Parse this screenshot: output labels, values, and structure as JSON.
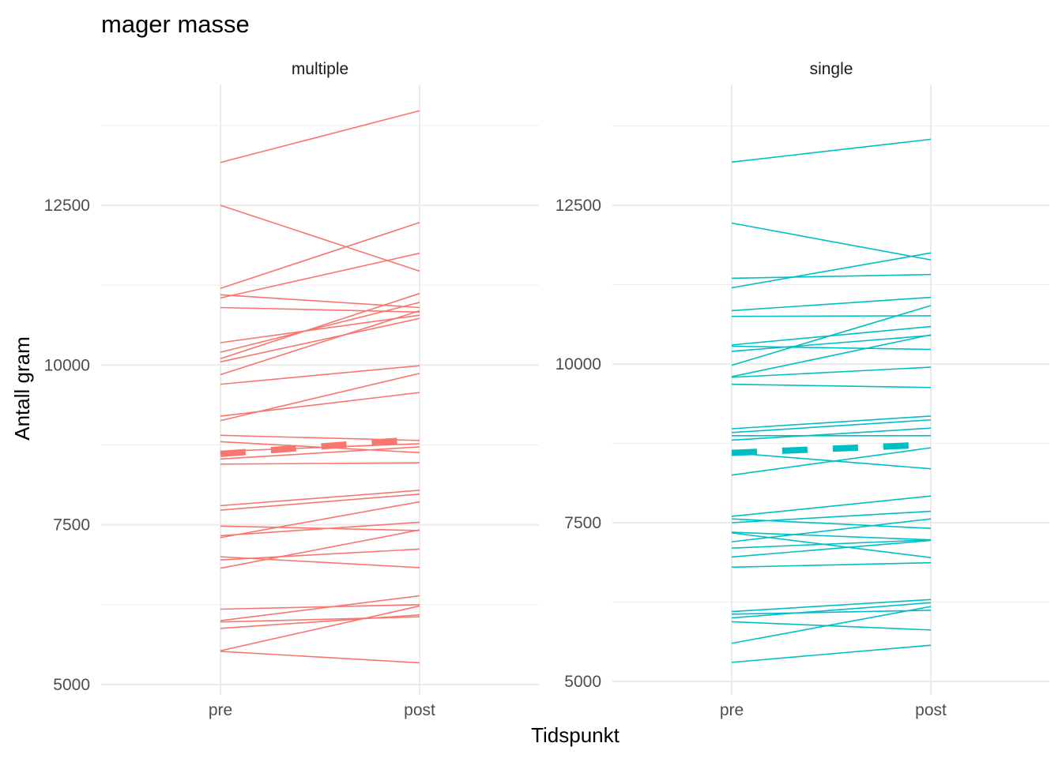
{
  "chart_data": {
    "type": "line",
    "title": "mager masse",
    "xlabel": "Tidspunkt",
    "ylabel": "Antall gram",
    "x": [
      "pre",
      "post"
    ],
    "grid": true,
    "panels": [
      {
        "label": "multiple",
        "color": "#F8766D",
        "ylim": [
          5000,
          14250
        ],
        "yticks": [
          5000,
          7500,
          10000,
          12500
        ],
        "mean": [
          8610,
          8840
        ],
        "pairs": [
          [
            13170,
            13980
          ],
          [
            12500,
            11470
          ],
          [
            11200,
            12230
          ],
          [
            11100,
            10900
          ],
          [
            11050,
            11750
          ],
          [
            10900,
            10830
          ],
          [
            10350,
            10780
          ],
          [
            10200,
            10980
          ],
          [
            10100,
            11120
          ],
          [
            10050,
            10730
          ],
          [
            9850,
            10850
          ],
          [
            9700,
            9990
          ],
          [
            9200,
            9570
          ],
          [
            9130,
            9870
          ],
          [
            8900,
            8820
          ],
          [
            8800,
            8630
          ],
          [
            8650,
            8770
          ],
          [
            8530,
            8720
          ],
          [
            8450,
            8470
          ],
          [
            7800,
            8040
          ],
          [
            7730,
            7980
          ],
          [
            7480,
            7410
          ],
          [
            7330,
            7540
          ],
          [
            7300,
            7860
          ],
          [
            7000,
            6830
          ],
          [
            6950,
            7120
          ],
          [
            6820,
            7420
          ],
          [
            6180,
            6250
          ],
          [
            6000,
            6390
          ],
          [
            5980,
            6060
          ],
          [
            5880,
            6090
          ],
          [
            5530,
            6230
          ],
          [
            5520,
            5340
          ]
        ]
      },
      {
        "label": "single",
        "color": "#00BFC4",
        "ylim": [
          5000,
          14250
        ],
        "yticks": [
          5000,
          7500,
          10000,
          12500
        ],
        "mean": [
          8600,
          8730
        ],
        "pairs": [
          [
            13180,
            13540
          ],
          [
            12220,
            11640
          ],
          [
            11350,
            11410
          ],
          [
            11200,
            11750
          ],
          [
            10840,
            11050
          ],
          [
            10750,
            10760
          ],
          [
            10300,
            10590
          ],
          [
            10280,
            10230
          ],
          [
            10200,
            10450
          ],
          [
            9980,
            10920
          ],
          [
            9800,
            10460
          ],
          [
            9790,
            9950
          ],
          [
            9680,
            9630
          ],
          [
            8980,
            9180
          ],
          [
            8920,
            9120
          ],
          [
            8870,
            8870
          ],
          [
            8800,
            8990
          ],
          [
            8600,
            8350
          ],
          [
            8250,
            8680
          ],
          [
            7600,
            7920
          ],
          [
            7560,
            7410
          ],
          [
            7500,
            7680
          ],
          [
            7350,
            7230
          ],
          [
            7340,
            6950
          ],
          [
            7200,
            7560
          ],
          [
            7100,
            7230
          ],
          [
            6960,
            7220
          ],
          [
            6800,
            6870
          ],
          [
            6100,
            6290
          ],
          [
            6060,
            6120
          ],
          [
            6000,
            6240
          ],
          [
            5940,
            5810
          ],
          [
            5600,
            6180
          ],
          [
            5300,
            5570
          ]
        ]
      }
    ]
  }
}
